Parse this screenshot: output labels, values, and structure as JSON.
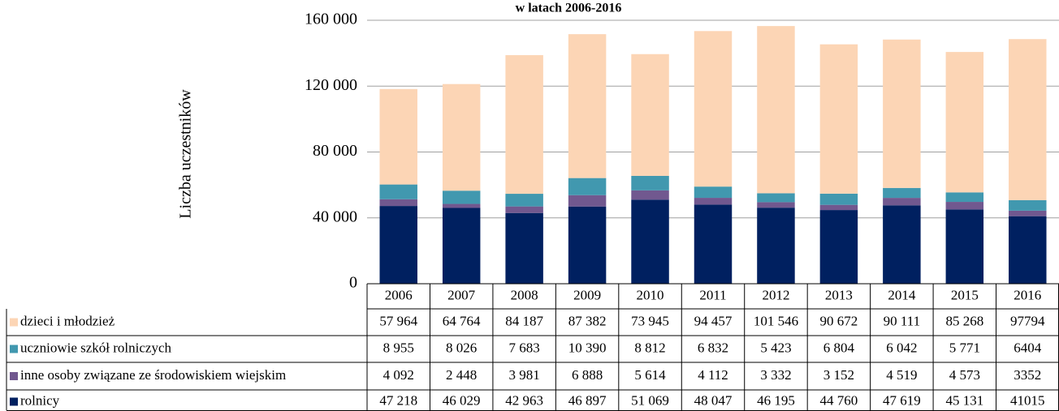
{
  "chart_data": {
    "type": "bar",
    "stacked": true,
    "title": "w latach 2006-2016",
    "y_label": "Liczba uczestników",
    "categories": [
      "2006",
      "2007",
      "2008",
      "2009",
      "2010",
      "2011",
      "2012",
      "2013",
      "2014",
      "2015",
      "2016"
    ],
    "series": [
      {
        "name": "dzieci i młodzież",
        "color": "#fcd5b5",
        "values": [
          57964,
          64764,
          84187,
          87382,
          73945,
          94457,
          101546,
          90672,
          90111,
          85268,
          97794
        ],
        "value_labels": [
          "57 964",
          "64 764",
          "84 187",
          "87 382",
          "73 945",
          "94 457",
          "101 546",
          "90 672",
          "90 111",
          "85 268",
          "97794"
        ]
      },
      {
        "name": "uczniowie szkół rolniczych",
        "color": "#4198af",
        "values": [
          8955,
          8026,
          7683,
          10390,
          8812,
          6832,
          5423,
          6804,
          6042,
          5771,
          6404
        ],
        "value_labels": [
          "8 955",
          "8 026",
          "7 683",
          "10 390",
          "8 812",
          "6 832",
          "5 423",
          "6 804",
          "6 042",
          "5 771",
          "6404"
        ]
      },
      {
        "name": "inne osoby związane ze środowiskiem wiejskim",
        "color": "#71588f",
        "values": [
          4092,
          2448,
          3981,
          6888,
          5614,
          4112,
          3332,
          3152,
          4519,
          4573,
          3352
        ],
        "value_labels": [
          "4 092",
          "2 448",
          "3 981",
          "6 888",
          "5 614",
          "4 112",
          "3 332",
          "3 152",
          "4 519",
          "4 573",
          "3352"
        ]
      },
      {
        "name": "rolnicy",
        "color": "#002060",
        "values": [
          47218,
          46029,
          42963,
          46897,
          51069,
          48047,
          46195,
          44760,
          47619,
          45131,
          41015
        ],
        "value_labels": [
          "47 218",
          "46 029",
          "42 963",
          "46 897",
          "51 069",
          "48 047",
          "46 195",
          "44 760",
          "47 619",
          "45 131",
          "41015"
        ]
      }
    ],
    "ylim": [
      0,
      160000
    ],
    "yticks": [
      0,
      {
        "value": 40000,
        "label": "40 000"
      },
      {
        "value": 80000,
        "label": "80 000"
      },
      {
        "value": 120000,
        "label": "120 000"
      },
      {
        "value": 160000,
        "label": "160 000"
      }
    ],
    "grid": true
  }
}
